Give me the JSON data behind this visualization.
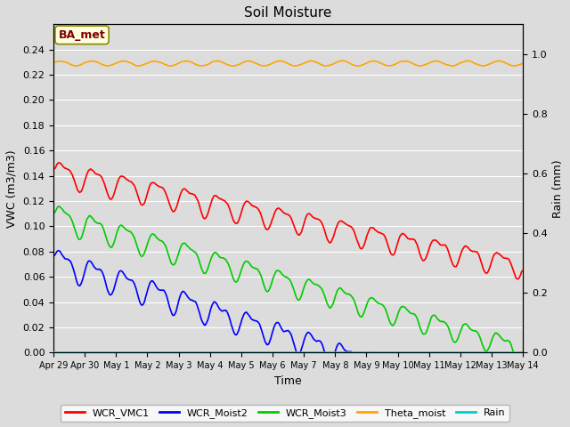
{
  "title": "Soil Moisture",
  "xlabel": "Time",
  "ylabel_left": "VWC (m3/m3)",
  "ylabel_right": "Rain (mm)",
  "ylim_left": [
    0.0,
    0.26
  ],
  "ylim_right": [
    0.0,
    1.1
  ],
  "yticks_left": [
    0.0,
    0.02,
    0.04,
    0.06,
    0.08,
    0.1,
    0.12,
    0.14,
    0.16,
    0.18,
    0.2,
    0.22,
    0.24
  ],
  "yticks_right": [
    0.0,
    0.2,
    0.4,
    0.6,
    0.8,
    1.0
  ],
  "xtick_labels": [
    "Apr 29",
    "Apr 30",
    "May 1",
    "May 2",
    "May 3",
    "May 4",
    "May 5",
    "May 6",
    "May 7",
    "May 8",
    "May 9",
    "May 10",
    "May 11",
    "May 12",
    "May 13",
    "May 14"
  ],
  "annotation_text": "BA_met",
  "background_color": "#dcdcdc",
  "plot_bg_color": "#dcdcdc",
  "grid_color": "#ffffff",
  "series_colors": {
    "WCR_VMC1": "#ff0000",
    "WCR_Moist2": "#0000ff",
    "WCR_Moist3": "#00cc00",
    "Theta_moist": "#ffa500",
    "Rain": "#00cccc"
  },
  "linewidth": 1.2
}
